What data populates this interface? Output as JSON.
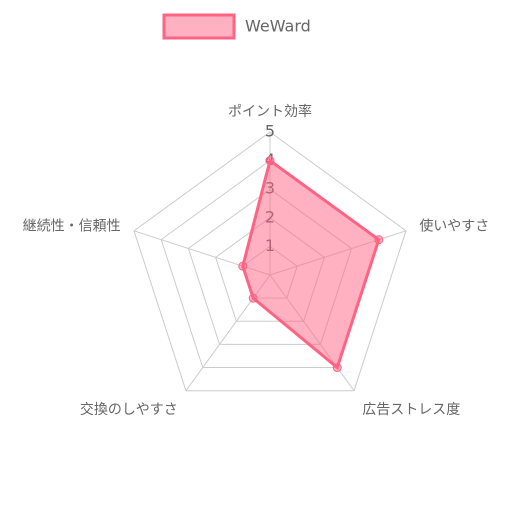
{
  "chart_data": {
    "type": "radar",
    "categories": [
      "ポイント効率",
      "使いやすさ",
      "広告ストレス度",
      "交換のしやすさ",
      "継続性・信頼性"
    ],
    "series": [
      {
        "name": "WeWard",
        "color": "#ff6384",
        "values": [
          4,
          4,
          4,
          1,
          1
        ]
      }
    ],
    "rlim": [
      0,
      5
    ],
    "rticks": [
      1,
      2,
      3,
      4,
      5
    ],
    "grid": true,
    "legend": "top"
  }
}
